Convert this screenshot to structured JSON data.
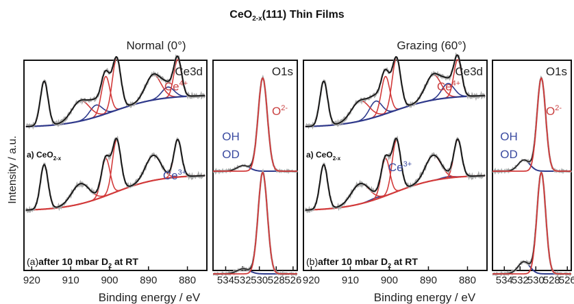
{
  "figure": {
    "title": {
      "main": "CeO",
      "sub": "2-x",
      "rest": "(111) Thin Films"
    },
    "ylabel": "Intensity / a.u.",
    "xlabel": "Binding energy / eV",
    "columns": [
      {
        "name": "normal",
        "label": "Normal (0°)",
        "panel_label": "(a)"
      },
      {
        "name": "grazing",
        "label": "Grazing (60°)",
        "panel_label": "(b)"
      }
    ],
    "ce3d_title": "Ce3d",
    "o1s_title": "O1s",
    "labels": {
      "ce4": {
        "base": "Ce",
        "sup": "4+"
      },
      "ce3": {
        "base": "Ce",
        "sup": "3+"
      },
      "o2": {
        "base": "O",
        "sup": "2-"
      },
      "oh": "OH",
      "od": "OD",
      "spectrum_a": {
        "base": "a) CeO",
        "sub": "2-x"
      },
      "spectrum_b": {
        "base": "after 10 mbar D",
        "sub": "2",
        "rest": " at RT"
      }
    },
    "colors": {
      "raw": "#a9a9a9",
      "fit": "#111111",
      "ce4": "#d23a3a",
      "ce3": "#2e3a8c",
      "text_red": "#c94040",
      "text_blue": "#3a4aa0"
    }
  },
  "chart_data": [
    {
      "type": "line",
      "panel": "normal-Ce3d",
      "title": "Ce3d",
      "xlabel": "Binding energy / eV",
      "ylabel": "Intensity / a.u.",
      "xlim": [
        922,
        875
      ],
      "x_reversed": true,
      "xticks": [
        920,
        910,
        900,
        890,
        880
      ],
      "peaks_Ce4+": [
        916.8,
        907.5,
        901.0,
        898.2,
        888.8,
        882.5
      ],
      "peaks_Ce3+": [
        903.5,
        885.0
      ],
      "series": [
        {
          "name": "a) CeO2-x",
          "intensity_scale": [
            1.0,
            0.75
          ]
        },
        {
          "name": "after 10 mbar D2 at RT",
          "intensity_scale": [
            1.0,
            0.0
          ]
        }
      ]
    },
    {
      "type": "line",
      "panel": "normal-O1s",
      "title": "O1s",
      "xlabel": "Binding energy / eV",
      "xlim": [
        535.5,
        525.5
      ],
      "x_reversed": true,
      "xticks": [
        534,
        532,
        530,
        528,
        526
      ],
      "peaks": {
        "O2-": 529.6,
        "OH/OD": 531.9
      },
      "series": [
        {
          "name": "a) CeO2-x",
          "O2-_intensity": 1.0,
          "OH_intensity": 0.06
        },
        {
          "name": "after 10 mbar D2 at RT",
          "O2-_intensity": 1.0,
          "OH_intensity": 0.05
        }
      ]
    },
    {
      "type": "line",
      "panel": "grazing-Ce3d",
      "title": "Ce3d",
      "xlabel": "Binding energy / eV",
      "xlim": [
        922,
        875
      ],
      "x_reversed": true,
      "xticks": [
        920,
        910,
        900,
        890,
        880
      ],
      "peaks_Ce4+": [
        916.8,
        907.5,
        901.0,
        898.2,
        888.8,
        882.5
      ],
      "peaks_Ce3+": [
        903.5,
        885.0
      ],
      "series": [
        {
          "name": "a) CeO2-x",
          "intensity_scale": [
            1.0,
            1.0
          ]
        },
        {
          "name": "after 10 mbar D2 at RT",
          "intensity_scale": [
            1.0,
            0.1
          ]
        }
      ]
    },
    {
      "type": "line",
      "panel": "grazing-O1s",
      "title": "O1s",
      "xlabel": "Binding energy / eV",
      "xlim": [
        535.5,
        525.5
      ],
      "x_reversed": true,
      "xticks": [
        534,
        532,
        530,
        528,
        526
      ],
      "peaks": {
        "O2-": 529.3,
        "OH/OD": 531.5
      },
      "series": [
        {
          "name": "a) CeO2-x",
          "O2-_intensity": 1.0,
          "OH_intensity": 0.12
        },
        {
          "name": "after 10 mbar D2 at RT",
          "O2-_intensity": 1.0,
          "OH_intensity": 0.12
        }
      ]
    }
  ]
}
